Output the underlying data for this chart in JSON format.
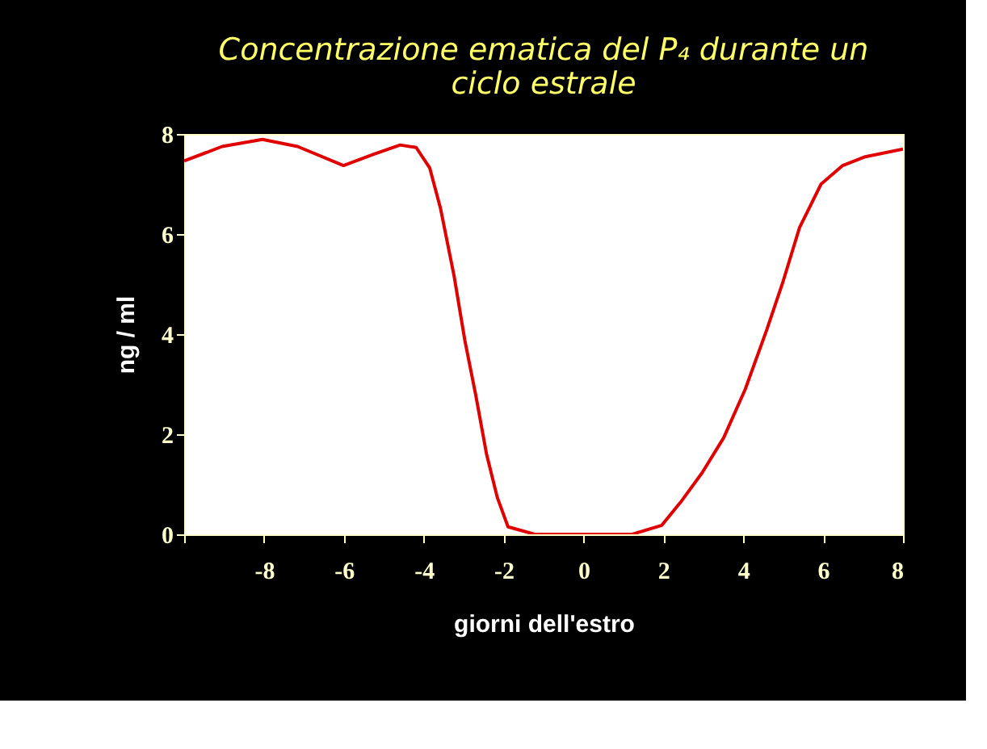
{
  "chart_data": {
    "type": "line",
    "title": "Concentrazione ematica del P₄ durante un ciclo estrale",
    "xlabel": "giorni dell'estro",
    "ylabel": "ng / ml",
    "x": [
      -10,
      -9.05,
      -8.04,
      -7.16,
      -6.01,
      -5.27,
      -4.59,
      -4.19,
      -3.85,
      -3.58,
      -3.24,
      -2.97,
      -2.7,
      -2.43,
      -2.16,
      -1.89,
      -1.22,
      -0.54,
      -0.07,
      0.68,
      1.22,
      1.96,
      2.43,
      2.97,
      3.51,
      4.05,
      4.59,
      5.0,
      5.41,
      5.95,
      6.49,
      7.03,
      8
    ],
    "series": [
      {
        "color": "#e00000",
        "values": [
          7.46,
          7.75,
          7.89,
          7.75,
          7.37,
          7.59,
          7.78,
          7.73,
          7.32,
          6.51,
          5.16,
          3.87,
          2.79,
          1.61,
          0.74,
          0.15,
          0,
          0,
          0,
          0,
          0,
          0.18,
          0.64,
          1.23,
          1.93,
          2.9,
          4.09,
          5.06,
          6.13,
          7.0,
          7.37,
          7.54,
          7.7
        ]
      }
    ],
    "xlim": [
      -10,
      8
    ],
    "xticks": [
      {
        "value": -10,
        "label": null
      },
      -8,
      -6,
      -4,
      -2,
      0,
      2,
      4,
      6,
      8
    ],
    "ylim": [
      0,
      8
    ],
    "yticks": [
      0,
      2,
      4,
      6,
      8
    ],
    "grid": false,
    "legend": false,
    "marker": "none",
    "line_style": "solid"
  }
}
